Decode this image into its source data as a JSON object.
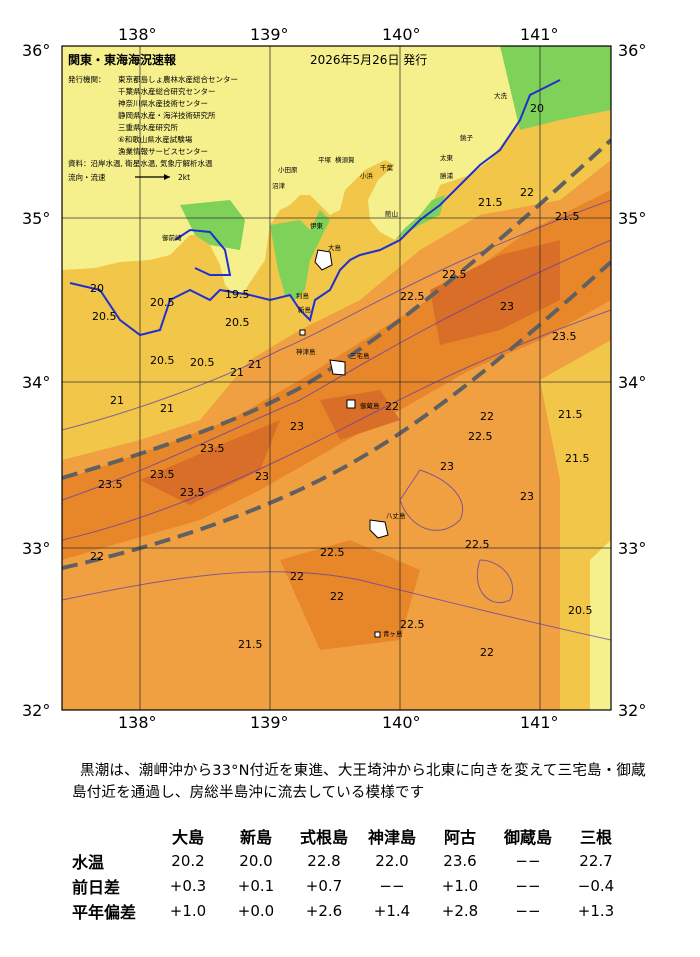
{
  "header": {
    "title": "関東・東海海況速報",
    "date": "2026年5月26日 発行",
    "institutions_label": "発行機関：",
    "institutions": [
      "東京都島しょ農林水産総合センター",
      "千葉県水産総合研究センター",
      "神奈川県水産技術センター",
      "静岡県水産・海洋技術研究所",
      "三重県水産研究所",
      "⑥和歌山県水産試験場",
      "漁業情報サービスセンター"
    ],
    "materials": "資料：沿岸水温, 衛星水温, 気象庁解析水温",
    "current_label": "流向・流速",
    "current_scale": "2kt"
  },
  "axes": {
    "lon_ticks": [
      "138°",
      "139°",
      "140°",
      "141°"
    ],
    "lat_ticks": [
      "36°",
      "35°",
      "34°",
      "33°",
      "32°"
    ]
  },
  "colors": {
    "land": "#f5f08c",
    "cool": "#f2c648",
    "warm": "#f0a040",
    "hot": "#e8862a",
    "kuroshio_core": "#d86e28",
    "green": "#7ed25a",
    "coast_isotherm": "#2030d0",
    "kuroshio_axis": "#606060"
  },
  "places": [
    "大洗",
    "平塚",
    "横須賀",
    "館山",
    "千葉",
    "小田原",
    "伊東",
    "沼津",
    "御前崎",
    "大島",
    "利島",
    "新島",
    "神津島",
    "三宅島",
    "御蔵島",
    "八丈島",
    "青ヶ島",
    "太東",
    "勝浦",
    "小浜",
    "銚子"
  ],
  "isotherm_labels": [
    "20.5",
    "20.5",
    "20.5",
    "20.5",
    "20.5",
    "21",
    "21",
    "21",
    "21.5",
    "21.5",
    "21.5",
    "22",
    "22",
    "22",
    "22",
    "22",
    "22.5",
    "22.5",
    "22.5",
    "22.5",
    "22.5",
    "23",
    "23",
    "23",
    "23",
    "23.5",
    "23.5",
    "23.5",
    "23.5",
    "23.5",
    "23",
    "22",
    "22",
    "22.5",
    "21.5",
    "21.5",
    "20.5",
    "20",
    "19.5",
    "20",
    "21"
  ],
  "summary": "黒潮は、潮岬沖から33°N付近を東進、大王埼沖から北東に向きを変えて三宅島・御蔵島付近を通過し、房総半島沖に流去している模様です",
  "table": {
    "columns": [
      "大島",
      "新島",
      "式根島",
      "神津島",
      "阿古",
      "御蔵島",
      "三根"
    ],
    "rows": [
      {
        "label": "水温",
        "values": [
          "20.2",
          "20.0",
          "22.8",
          "22.0",
          "23.6",
          "−−",
          "22.7"
        ]
      },
      {
        "label": "前日差",
        "values": [
          "+0.3",
          "+0.1",
          "+0.7",
          "−−",
          "+1.0",
          "−−",
          "−0.4"
        ]
      },
      {
        "label": "平年偏差",
        "values": [
          "+1.0",
          "+0.0",
          "+2.6",
          "+1.4",
          "+2.8",
          "−−",
          "+1.3"
        ]
      }
    ]
  }
}
